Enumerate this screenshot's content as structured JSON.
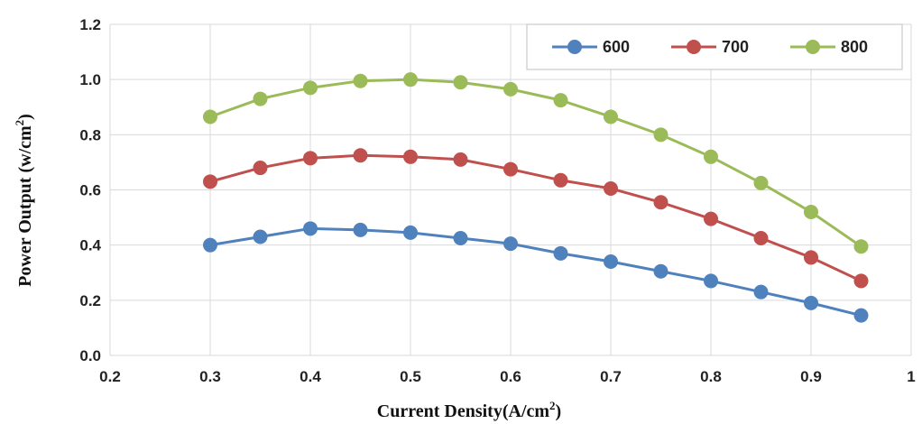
{
  "chart_data": {
    "type": "line",
    "title": "",
    "xlabel": "Current Density(A/cm",
    "xlabel_sup": "2",
    "xlabel_suffix": ")",
    "ylabel": "Power  Output  (w/cm",
    "ylabel_sup": "2",
    "ylabel_suffix": ")",
    "xlim": [
      0.2,
      1.0
    ],
    "ylim": [
      0.0,
      1.2
    ],
    "x_ticks": [
      0.2,
      0.3,
      0.4,
      0.5,
      0.6,
      0.7,
      0.8,
      0.9,
      1.0
    ],
    "x_tick_labels": [
      "0.2",
      "0.3",
      "0.4",
      "0.5",
      "0.6",
      "0.7",
      "0.8",
      "0.9",
      "1"
    ],
    "y_ticks": [
      0.0,
      0.2,
      0.4,
      0.6,
      0.8,
      1.0,
      1.2
    ],
    "y_tick_labels": [
      "0.0",
      "0.2",
      "0.4",
      "0.6",
      "0.8",
      "1.0",
      "1.2"
    ],
    "grid": true,
    "legend_position": "top-right",
    "x": [
      0.3,
      0.35,
      0.4,
      0.45,
      0.5,
      0.55,
      0.6,
      0.65,
      0.7,
      0.75,
      0.8,
      0.85,
      0.9,
      0.95
    ],
    "series": [
      {
        "name": "600",
        "color": "#4F81BD",
        "values": [
          0.4,
          0.43,
          0.46,
          0.455,
          0.445,
          0.425,
          0.405,
          0.37,
          0.34,
          0.305,
          0.27,
          0.23,
          0.19,
          0.145
        ]
      },
      {
        "name": "700",
        "color": "#C0504D",
        "values": [
          0.63,
          0.68,
          0.715,
          0.725,
          0.72,
          0.71,
          0.675,
          0.635,
          0.605,
          0.555,
          0.495,
          0.425,
          0.355,
          0.27
        ]
      },
      {
        "name": "800",
        "color": "#9BBB59",
        "values": [
          0.865,
          0.93,
          0.97,
          0.995,
          1.0,
          0.99,
          0.965,
          0.925,
          0.865,
          0.8,
          0.72,
          0.625,
          0.52,
          0.395
        ]
      }
    ]
  }
}
